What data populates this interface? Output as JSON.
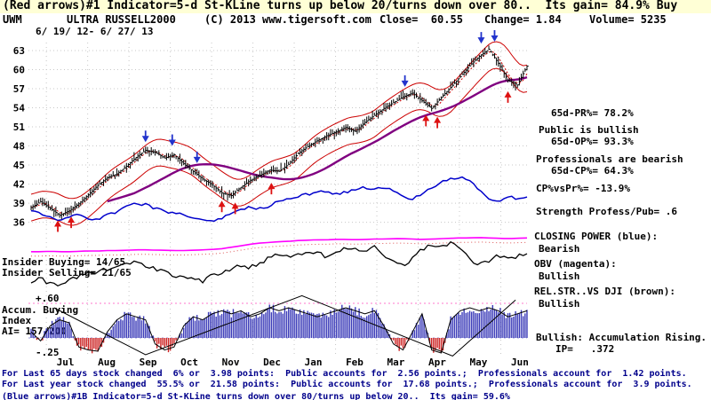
{
  "header": {
    "line1": "(Red arrows)#1 Indicator=5-d St-KLine turns up below 20/turns down over 80..  Its gain= 84.9% Buy",
    "symbol": "UWM",
    "name": "ULTRA RUSSELL2000",
    "copyright": "(C) 2013 www.tigersoft.com",
    "close_label": "Close=  60.55",
    "change_label": "Change= 1.84",
    "volume_label": "Volume= 5235",
    "date_range": "6/ 19/ 12- 6/ 27/ 13"
  },
  "left_labels": {
    "insider_buying": "Insider Buying= 14/65",
    "insider_selling": "Insider Selling= 21/65",
    "ai_top": "+.60",
    "accum_line1": "Accum. Buying",
    "accum_line2": "Index",
    "ai_value": "AI= 157/200",
    "ai_bottom": "-.25"
  },
  "right_panel": {
    "pr": "65d-PR%= 78.2%",
    "public_state": "Public is bullish",
    "op": "65d-OP%= 93.3%",
    "professionals_state": "Professionals are bearish",
    "cp": "65d-CP%= 64.3%",
    "cp_vs_pr": "CP%vsPr%= -13.9%",
    "strength": "Strength Profess/Pub= .6",
    "closing_power_label": "CLOSING POWER (blue):",
    "closing_power_state": "Bearish",
    "obv_label": "OBV (magenta):",
    "obv_state": "Bullish",
    "relstr_label": "REL.STR..VS DJI (brown):",
    "relstr_state": "Bullish",
    "accum_state": "Bullish: Accumulation Rising.",
    "ip": "IP=   .372"
  },
  "footer": {
    "line1": "For Last 65 days stock changed  6% or  3.98 points:  Public accounts for  2.56 points.;  Professionals account for  1.42 points.",
    "line2": "For Last year stock changed  55.5% or  21.58 points:  Public accounts for  17.68 points.;  Professionals account for  3.9 points.",
    "line3_partial": "(Blue arrows)#1B Indicator=5-d St-KLine turns down over 80/turns up below 20..  Its gain= 59.6%"
  },
  "chart_data": {
    "type": "candlestick",
    "title": "UWM  ULTRA RUSSELL2000",
    "date_range": "6/19/12 - 6/27/13",
    "ylabel": "Price",
    "ylim": [
      36,
      63
    ],
    "price_ticks": [
      63,
      60,
      57,
      54,
      51,
      48,
      45,
      42,
      39,
      36
    ],
    "months": [
      "Jul",
      "Aug",
      "Sep",
      "Oct",
      "Nov",
      "Dec",
      "Jan",
      "Feb",
      "Mar",
      "Apr",
      "May",
      "Jun"
    ],
    "sample_interval_days": 5,
    "close_samples": [
      38.3,
      39.2,
      38.2,
      37.1,
      37.8,
      38.9,
      40.3,
      41.8,
      43.0,
      43.6,
      44.8,
      46.2,
      47.3,
      47.0,
      46.1,
      46.6,
      45.2,
      44.0,
      42.8,
      41.9,
      40.6,
      40.2,
      41.5,
      42.6,
      43.4,
      44.2,
      44.0,
      45.1,
      46.8,
      47.9,
      48.8,
      49.6,
      50.2,
      50.9,
      50.3,
      51.7,
      52.8,
      53.9,
      54.8,
      55.7,
      56.3,
      55.1,
      53.9,
      55.6,
      57.2,
      58.9,
      60.6,
      62.1,
      63.2,
      61.0,
      58.3,
      57.6,
      60.55
    ],
    "closing_power": [
      0.3,
      0.28,
      0.22,
      0.18,
      0.22,
      0.25,
      0.2,
      0.18,
      0.25,
      0.3,
      0.38,
      0.42,
      0.4,
      0.35,
      0.3,
      0.28,
      0.25,
      0.22,
      0.18,
      0.15,
      0.2,
      0.28,
      0.33,
      0.36,
      0.34,
      0.38,
      0.45,
      0.5,
      0.52,
      0.55,
      0.58,
      0.6,
      0.55,
      0.58,
      0.62,
      0.65,
      0.63,
      0.66,
      0.6,
      0.52,
      0.48,
      0.55,
      0.65,
      0.72,
      0.78,
      0.8,
      0.75,
      0.62,
      0.5,
      0.45,
      0.52,
      0.48,
      0.5
    ],
    "obv": [
      0.1,
      0.1,
      0.11,
      0.1,
      0.1,
      0.11,
      0.12,
      0.12,
      0.13,
      0.13,
      0.14,
      0.15,
      0.15,
      0.14,
      0.14,
      0.13,
      0.13,
      0.14,
      0.15,
      0.16,
      0.18,
      0.22,
      0.26,
      0.3,
      0.33,
      0.35,
      0.37,
      0.38,
      0.4,
      0.41,
      0.42,
      0.42,
      0.43,
      0.43,
      0.42,
      0.43,
      0.44,
      0.44,
      0.45,
      0.45,
      0.44,
      0.43,
      0.44,
      0.45,
      0.46,
      0.47,
      0.47,
      0.48,
      0.47,
      0.46,
      0.45,
      0.46,
      0.47
    ],
    "rel_strength": [
      0.2,
      0.25,
      0.18,
      0.15,
      0.22,
      0.3,
      0.35,
      0.35,
      0.4,
      0.45,
      0.5,
      0.48,
      0.45,
      0.4,
      0.35,
      0.3,
      0.28,
      0.25,
      0.22,
      0.3,
      0.35,
      0.4,
      0.45,
      0.42,
      0.48,
      0.55,
      0.6,
      0.58,
      0.62,
      0.65,
      0.62,
      0.58,
      0.63,
      0.68,
      0.7,
      0.66,
      0.7,
      0.6,
      0.5,
      0.45,
      0.55,
      0.68,
      0.75,
      0.72,
      0.78,
      0.7,
      0.55,
      0.45,
      0.5,
      0.6,
      0.55,
      0.58,
      0.62
    ],
    "accum_index": [
      0.1,
      -0.05,
      0.2,
      0.3,
      0.25,
      -0.15,
      -0.2,
      -0.22,
      0.1,
      0.3,
      0.4,
      0.35,
      0.3,
      -0.1,
      -0.2,
      -0.15,
      0.2,
      0.35,
      0.3,
      0.4,
      0.45,
      0.4,
      0.45,
      0.35,
      0.4,
      0.5,
      0.45,
      0.5,
      0.45,
      0.4,
      0.35,
      0.4,
      0.45,
      0.5,
      0.45,
      0.4,
      0.45,
      0.2,
      -0.1,
      -0.2,
      0.1,
      0.4,
      -0.2,
      -0.25,
      0.3,
      0.45,
      0.5,
      0.45,
      0.5,
      0.45,
      0.35,
      0.4,
      0.45
    ],
    "ai_range": [
      -0.25,
      0.6
    ],
    "buy_arrows": [
      {
        "day": 14,
        "price": 36.3
      },
      {
        "day": 21,
        "price": 36.9
      },
      {
        "day": 100,
        "price": 39.4
      },
      {
        "day": 107,
        "price": 39.1
      },
      {
        "day": 126,
        "price": 42.2
      },
      {
        "day": 207,
        "price": 52.9
      },
      {
        "day": 213,
        "price": 52.6
      },
      {
        "day": 250,
        "price": 56.6
      }
    ],
    "sell_arrows": [
      {
        "day": 60,
        "price": 48.6
      },
      {
        "day": 74,
        "price": 48.0
      },
      {
        "day": 87,
        "price": 45.3
      },
      {
        "day": 196,
        "price": 57.3
      },
      {
        "day": 236,
        "price": 64.1
      },
      {
        "day": 243,
        "price": 64.4
      }
    ],
    "trend_lines": [
      {
        "day": 12,
        "val": 0.5
      },
      {
        "day": 60,
        "val": -0.28
      },
      {
        "day": 142,
        "val": 0.7
      },
      {
        "day": 221,
        "val": -0.3
      },
      {
        "day": 254,
        "val": 0.63
      }
    ],
    "colors": {
      "candle": "#000000",
      "band": "#cc0000",
      "ma_long": "#800080",
      "cp": "#0000cc",
      "obv": "#ff00ff",
      "rs": "#000000",
      "ai_pos": "#3a3ab8",
      "ai_neg": "#cc2222",
      "grid": "#c8c8c8",
      "marker_up": "#dd1111",
      "marker_down": "#2233cc"
    }
  }
}
